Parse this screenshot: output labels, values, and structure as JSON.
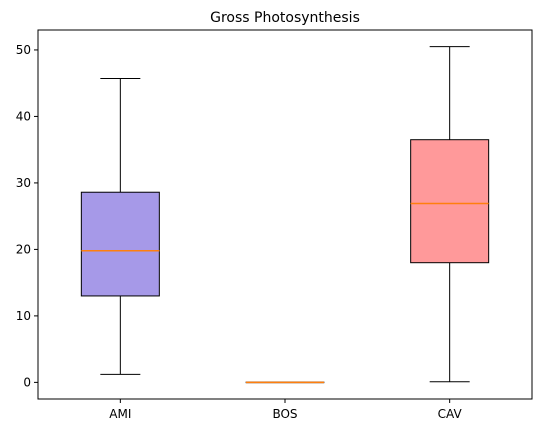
{
  "chart_data": {
    "type": "box",
    "title": "Gross Photosynthesis",
    "xlabel": "",
    "ylabel": "",
    "ylim": [
      -2.5,
      53
    ],
    "y_ticks": [
      0,
      10,
      20,
      30,
      40,
      50
    ],
    "categories": [
      "AMI",
      "BOS",
      "CAV"
    ],
    "boxes": [
      {
        "category": "AMI",
        "whisker_low": 1.2,
        "q1": 13.0,
        "median": 19.8,
        "q3": 28.6,
        "whisker_high": 45.7,
        "color": "#a699e8"
      },
      {
        "category": "BOS",
        "whisker_low": 0.0,
        "q1": 0.0,
        "median": 0.0,
        "q3": 0.0,
        "whisker_high": 0.0,
        "color": "#ff7f0e"
      },
      {
        "category": "CAV",
        "whisker_low": 0.1,
        "q1": 18.0,
        "median": 26.9,
        "q3": 36.5,
        "whisker_high": 50.5,
        "color": "#ff999a"
      }
    ],
    "median_color": "#ff7f0e",
    "grid": false,
    "legend": "none"
  }
}
